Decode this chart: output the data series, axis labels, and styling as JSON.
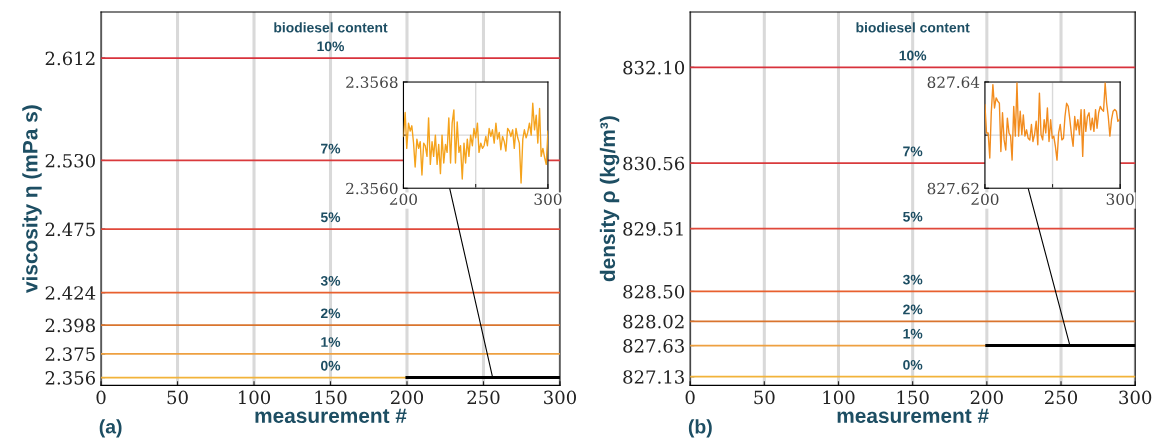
{
  "chart_data": [
    {
      "type": "line",
      "xlabel": "measurement #",
      "ylabel": "viscosity η (mPa s)",
      "annotations": [
        "biodiesel content",
        "(a)"
      ],
      "xlim": [
        0,
        300
      ],
      "xticks": [
        0,
        50,
        100,
        150,
        200,
        250,
        300
      ],
      "ylim": [
        2.3497,
        2.649
      ],
      "yticks": [
        2.356,
        2.375,
        2.398,
        2.424,
        2.475,
        {
          "value": 2.53,
          "label": "2.530"
        },
        2.612
      ],
      "grid": "x",
      "legend": false,
      "marker": "none",
      "line_style": "solid",
      "series": [
        {
          "name": "0%",
          "color": "#f2b33a",
          "x": [
            0,
            200
          ],
          "values": [
            2.356,
            2.356
          ]
        },
        {
          "name": "1%",
          "color": "#eea040",
          "x": [
            0,
            300
          ],
          "values": [
            2.375,
            2.375
          ]
        },
        {
          "name": "2%",
          "color": "#d9742e",
          "x": [
            0,
            300
          ],
          "values": [
            2.398,
            2.398
          ]
        },
        {
          "name": "3%",
          "color": "#e8602f",
          "x": [
            0,
            300
          ],
          "values": [
            2.424,
            2.424
          ]
        },
        {
          "name": "5%",
          "color": "#e0483a",
          "x": [
            0,
            300
          ],
          "values": [
            2.475,
            2.475
          ]
        },
        {
          "name": "7%",
          "color": "#d93a3c",
          "x": [
            0,
            300
          ],
          "values": [
            2.53,
            2.53
          ]
        },
        {
          "name": "10%",
          "color": "#d8323c",
          "x": [
            0,
            300
          ],
          "values": [
            2.612,
            2.612
          ]
        },
        {
          "color": "#000000",
          "x": [
            200,
            300
          ],
          "values": [
            2.356,
            2.356
          ]
        }
      ]
    },
    {
      "type": "line",
      "xlim": [
        200,
        300
      ],
      "xticks": [
        200,
        {
          "value": 250,
          "label": null
        },
        300
      ],
      "ylim": [
        2.356,
        2.3568
      ],
      "yticks": [
        {
          "value": 2.356,
          "label": "2.3560"
        },
        {
          "value": 2.3564,
          "label": null
        },
        {
          "value": 2.3568,
          "label": "2.3568"
        }
      ],
      "grid": true,
      "legend": false,
      "marker": "none",
      "line_style": "solid",
      "series": [
        {
          "color": "#f5a31c",
          "x": [
            200,
            201.2,
            202.3,
            203.5,
            204.7,
            205.8,
            207.0,
            208.1,
            209.3,
            210.5,
            211.6,
            212.8,
            214.0,
            215.1,
            216.3,
            217.4,
            218.6,
            219.8,
            220.9,
            222.1,
            223.3,
            224.4,
            225.6,
            226.7,
            227.9,
            229.1,
            230.2,
            231.4,
            232.6,
            233.7,
            234.9,
            236.0,
            237.2,
            238.4,
            239.5,
            240.7,
            241.9,
            243.0,
            244.2,
            245.3,
            246.5,
            247.7,
            248.8,
            250.0,
            251.2,
            252.3,
            253.5,
            254.7,
            255.8,
            257.0,
            258.1,
            259.3,
            260.5,
            261.6,
            262.8,
            264.0,
            265.1,
            266.3,
            267.4,
            268.6,
            269.8,
            270.9,
            272.1,
            273.3,
            274.4,
            275.6,
            276.7,
            277.9,
            279.1,
            280.2,
            281.4,
            282.6,
            283.7,
            284.9,
            286.0,
            287.2,
            288.4,
            289.5,
            290.7,
            291.9,
            293.0,
            294.2,
            295.3,
            296.5,
            297.7,
            298.8,
            300.0
          ],
          "values": [
            2.35639,
            2.35657,
            2.3563,
            2.35649,
            2.35643,
            2.35647,
            2.35634,
            2.35616,
            2.35637,
            2.3563,
            2.35635,
            2.3561,
            2.35634,
            2.35632,
            2.35624,
            2.35653,
            2.35618,
            2.35635,
            2.35624,
            2.3564,
            2.35618,
            2.35633,
            2.35611,
            2.3564,
            2.35619,
            2.35633,
            2.35627,
            2.35653,
            2.35619,
            2.35649,
            2.35659,
            2.35619,
            2.3565,
            2.35627,
            2.35632,
            2.35607,
            2.35634,
            2.35619,
            2.35637,
            2.35624,
            2.3564,
            2.35632,
            2.35645,
            2.35638,
            2.35649,
            2.35627,
            2.35634,
            2.3563,
            2.35632,
            2.35639,
            2.35632,
            2.35645,
            2.35639,
            2.35644,
            2.35634,
            2.35649,
            2.35637,
            2.35642,
            2.35629,
            2.35639,
            2.35635,
            2.35628,
            2.35645,
            2.35643,
            2.35639,
            2.35644,
            2.3563,
            2.35645,
            2.35638,
            2.35634,
            2.35604,
            2.35637,
            2.35644,
            2.35638,
            2.35642,
            2.35649,
            2.3564,
            2.35664,
            2.35644,
            2.35655,
            2.35634,
            2.3566,
            2.35624,
            2.3563,
            2.35623,
            2.35618,
            2.35643
          ]
        }
      ]
    },
    {
      "type": "line",
      "xlabel": "measurement #",
      "ylabel": "density ρ (kg/m³)",
      "annotations": [
        "biodiesel content",
        "(b)"
      ],
      "xlim": [
        0,
        300
      ],
      "xticks": [
        0,
        50,
        100,
        150,
        200,
        250,
        300
      ],
      "ylim": [
        826.99,
        832.99
      ],
      "yticks": [
        827.13,
        827.63,
        828.02,
        {
          "value": 828.5,
          "label": "828.50"
        },
        829.51,
        830.56,
        {
          "value": 832.1,
          "label": "832.10"
        }
      ],
      "grid": "x",
      "legend": false,
      "marker": "none",
      "line_style": "solid",
      "series": [
        {
          "name": "0%",
          "color": "#f2b33a",
          "x": [
            0,
            300
          ],
          "values": [
            827.13,
            827.13
          ]
        },
        {
          "name": "1%",
          "color": "#eea040",
          "x": [
            0,
            200
          ],
          "values": [
            827.63,
            827.63
          ]
        },
        {
          "name": "2%",
          "color": "#d9742e",
          "x": [
            0,
            300
          ],
          "values": [
            828.02,
            828.02
          ]
        },
        {
          "name": "3%",
          "color": "#e8602f",
          "x": [
            0,
            300
          ],
          "values": [
            828.5,
            828.5
          ]
        },
        {
          "name": "5%",
          "color": "#e0483a",
          "x": [
            0,
            300
          ],
          "values": [
            829.51,
            829.51
          ]
        },
        {
          "name": "7%",
          "color": "#d93a3c",
          "x": [
            0,
            300
          ],
          "values": [
            830.56,
            830.56
          ]
        },
        {
          "name": "10%",
          "color": "#d8323c",
          "x": [
            0,
            300
          ],
          "values": [
            832.1,
            832.1
          ]
        },
        {
          "color": "#000000",
          "x": [
            200,
            300
          ],
          "values": [
            827.63,
            827.63
          ]
        }
      ]
    },
    {
      "type": "line",
      "xlim": [
        200,
        300
      ],
      "xticks": [
        200,
        {
          "value": 250,
          "label": null
        },
        300
      ],
      "ylim": [
        827.62,
        827.64
      ],
      "yticks": [
        827.62,
        {
          "value": 827.63,
          "label": null
        },
        827.64
      ],
      "grid": true,
      "legend": false,
      "marker": "none",
      "line_style": "solid",
      "series": [
        {
          "color": "#f28c1e",
          "x": [
            200,
            201.2,
            202.4,
            203.6,
            204.7,
            205.9,
            207.1,
            208.3,
            209.5,
            210.7,
            211.8,
            213.0,
            214.2,
            215.4,
            216.6,
            217.8,
            219.0,
            220.1,
            221.3,
            222.5,
            223.7,
            224.9,
            226.1,
            227.3,
            228.4,
            229.6,
            230.8,
            232.0,
            233.2,
            234.4,
            235.5,
            236.7,
            237.9,
            239.1,
            240.3,
            241.5,
            242.7,
            243.8,
            245.0,
            246.2,
            247.4,
            248.6,
            249.8,
            250.9,
            252.1,
            253.3,
            254.5,
            255.7,
            256.9,
            258.1,
            259.2,
            260.4,
            261.6,
            262.8,
            264.0,
            265.2,
            266.4,
            267.5,
            268.7,
            269.9,
            271.1,
            272.3,
            273.5,
            274.6,
            275.8,
            277.0,
            278.2,
            279.4,
            280.6,
            281.8,
            282.9,
            284.1,
            285.3,
            286.5,
            287.7,
            288.9,
            290.0,
            291.2,
            292.4,
            293.6,
            294.8,
            296.0,
            297.2,
            298.3,
            299.5
          ],
          "values": [
            827.6357,
            827.6304,
            827.6304,
            827.6257,
            827.6342,
            827.6395,
            827.6351,
            827.637,
            827.6364,
            827.636,
            827.6269,
            827.6342,
            827.6291,
            827.6272,
            827.6332,
            827.6304,
            827.6298,
            827.6253,
            827.6354,
            827.6298,
            827.6398,
            827.6298,
            827.6345,
            827.6301,
            827.6338,
            827.6298,
            827.631,
            827.6294,
            827.6291,
            827.632,
            827.6288,
            827.6301,
            827.6326,
            827.6282,
            827.6379,
            827.6301,
            827.6291,
            827.6329,
            827.6304,
            827.6351,
            827.6288,
            827.6329,
            827.6294,
            827.6298,
            827.6279,
            827.6253,
            827.6304,
            827.632,
            827.6291,
            827.6294,
            827.6335,
            827.636,
            827.6354,
            827.6329,
            827.6301,
            827.6279,
            827.6335,
            827.631,
            827.6329,
            827.6301,
            827.6348,
            827.626,
            827.6348,
            827.6307,
            827.6335,
            827.6342,
            827.631,
            827.6332,
            827.6307,
            827.6348,
            827.6313,
            827.6342,
            827.6354,
            827.6348,
            827.6345,
            827.6398,
            827.636,
            827.6335,
            827.6298,
            827.6329,
            827.6345,
            827.6348,
            827.6345,
            827.6326,
            827.6329
          ]
        }
      ]
    }
  ]
}
